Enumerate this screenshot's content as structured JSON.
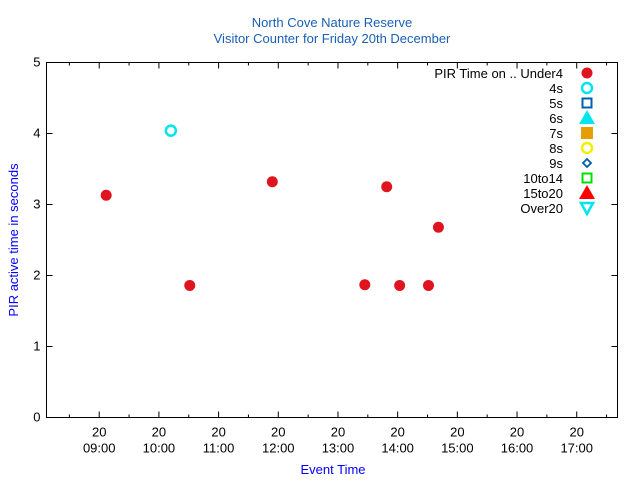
{
  "chart_data": {
    "type": "scatter",
    "title": "North Cove Nature Reserve",
    "subtitle": "Visitor Counter for Friday 20th December",
    "xlabel": "Event Time",
    "ylabel": "PIR active time in seconds",
    "xlim": [
      "08:07",
      "17:41"
    ],
    "ylim": [
      0,
      5
    ],
    "x_ticks": [
      {
        "day": "20",
        "time": "09:00"
      },
      {
        "day": "20",
        "time": "10:00"
      },
      {
        "day": "20",
        "time": "11:00"
      },
      {
        "day": "20",
        "time": "12:00"
      },
      {
        "day": "20",
        "time": "13:00"
      },
      {
        "day": "20",
        "time": "14:00"
      },
      {
        "day": "20",
        "time": "15:00"
      },
      {
        "day": "20",
        "time": "16:00"
      },
      {
        "day": "20",
        "time": "17:00"
      }
    ],
    "y_ticks": [
      "0",
      "1",
      "2",
      "3",
      "4",
      "5"
    ],
    "grid": false,
    "legend_title": "PIR Time on ..",
    "legend_position": "top-right",
    "series": [
      {
        "name": "Under4",
        "marker": "filled-circle",
        "color": "#e0141e",
        "x": [
          "09:07",
          "10:31",
          "11:54",
          "13:27",
          "13:49",
          "14:02",
          "14:31",
          "14:41"
        ],
        "y": [
          3.13,
          1.86,
          3.32,
          1.87,
          3.25,
          1.86,
          1.86,
          2.68
        ]
      },
      {
        "name": "4s",
        "marker": "open-circle",
        "color": "#00e5ee",
        "x": [
          "10:12"
        ],
        "y": [
          4.04
        ]
      },
      {
        "name": "5s",
        "marker": "open-square",
        "color": "#0060ad",
        "x": [],
        "y": []
      },
      {
        "name": "6s",
        "marker": "filled-triangle-up",
        "color": "#00e5ee",
        "x": [],
        "y": []
      },
      {
        "name": "7s",
        "marker": "filled-square",
        "color": "#e69f00",
        "x": [],
        "y": []
      },
      {
        "name": "8s",
        "marker": "open-circle",
        "color": "#f0f000",
        "x": [],
        "y": []
      },
      {
        "name": "9s",
        "marker": "open-diamond",
        "color": "#0060ad",
        "x": [],
        "y": []
      },
      {
        "name": "10to14",
        "marker": "open-square",
        "color": "#00e000",
        "x": [],
        "y": []
      },
      {
        "name": "15to20",
        "marker": "filled-triangle-up",
        "color": "#ff0000",
        "x": [],
        "y": []
      },
      {
        "name": "Over20",
        "marker": "open-triangle-down",
        "color": "#00e5ee",
        "x": [],
        "y": []
      }
    ]
  }
}
